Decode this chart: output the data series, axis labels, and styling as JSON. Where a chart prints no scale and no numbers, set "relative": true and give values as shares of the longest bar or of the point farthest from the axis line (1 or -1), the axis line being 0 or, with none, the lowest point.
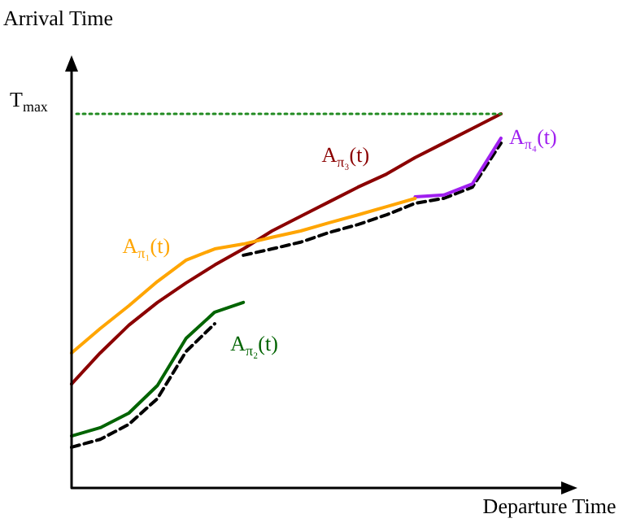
{
  "chart_data": {
    "type": "line",
    "relative": true,
    "xlabel": "Departure Time",
    "ylabel": "Arrival Time",
    "grid": false,
    "legend": false,
    "marker": "none",
    "categories": [
      null,
      null,
      null,
      null,
      null,
      null,
      null,
      null,
      null,
      null,
      null,
      null,
      null,
      null,
      null,
      null
    ],
    "ref_lines": [
      {
        "axis": "y",
        "value": 1,
        "label": "T$_{max}$",
        "color": "#228b22",
        "line_style": "dotted"
      }
    ],
    "series": [
      {
        "name": "A$_{π₁}$(t)",
        "color": "#ffa500",
        "values": [
          0.361,
          0.426,
          0.487,
          0.552,
          0.609,
          0.639,
          0.652,
          0.67,
          0.687,
          0.709,
          0.73,
          0.752,
          0.774,
          null,
          null,
          null
        ]
      },
      {
        "name": "A$_{π₂}$(t)",
        "color": "#006400",
        "values": [
          0.139,
          0.161,
          0.2,
          0.274,
          0.4,
          0.47,
          0.496,
          null,
          null,
          null,
          null,
          null,
          null,
          null,
          null,
          null
        ]
      },
      {
        "name": "A$_{π₃}$(t)",
        "color": "#8b0000",
        "values": [
          0.278,
          0.361,
          0.435,
          0.496,
          0.548,
          0.596,
          0.639,
          0.687,
          0.726,
          0.765,
          0.804,
          0.839,
          0.883,
          0.922,
          0.961,
          1
        ]
      },
      {
        "name": "A$_{π₄}$(t)",
        "color": "#a020f0",
        "values": [
          null,
          null,
          null,
          null,
          null,
          null,
          null,
          null,
          null,
          null,
          null,
          null,
          0.778,
          0.783,
          0.813,
          0.935
        ]
      },
      {
        "color": "#000000",
        "line_style": "dashed",
        "values": [
          0.109,
          0.13,
          0.17,
          0.239,
          0.365,
          0.439,
          null,
          null,
          null,
          null,
          null,
          null,
          null,
          null,
          null,
          null
        ]
      },
      {
        "color": "#000000",
        "line_style": "dashed",
        "values": [
          null,
          null,
          null,
          null,
          null,
          null,
          0.622,
          0.639,
          0.657,
          0.683,
          0.704,
          0.73,
          0.761,
          0.774,
          0.804,
          0.922
        ]
      }
    ]
  }
}
